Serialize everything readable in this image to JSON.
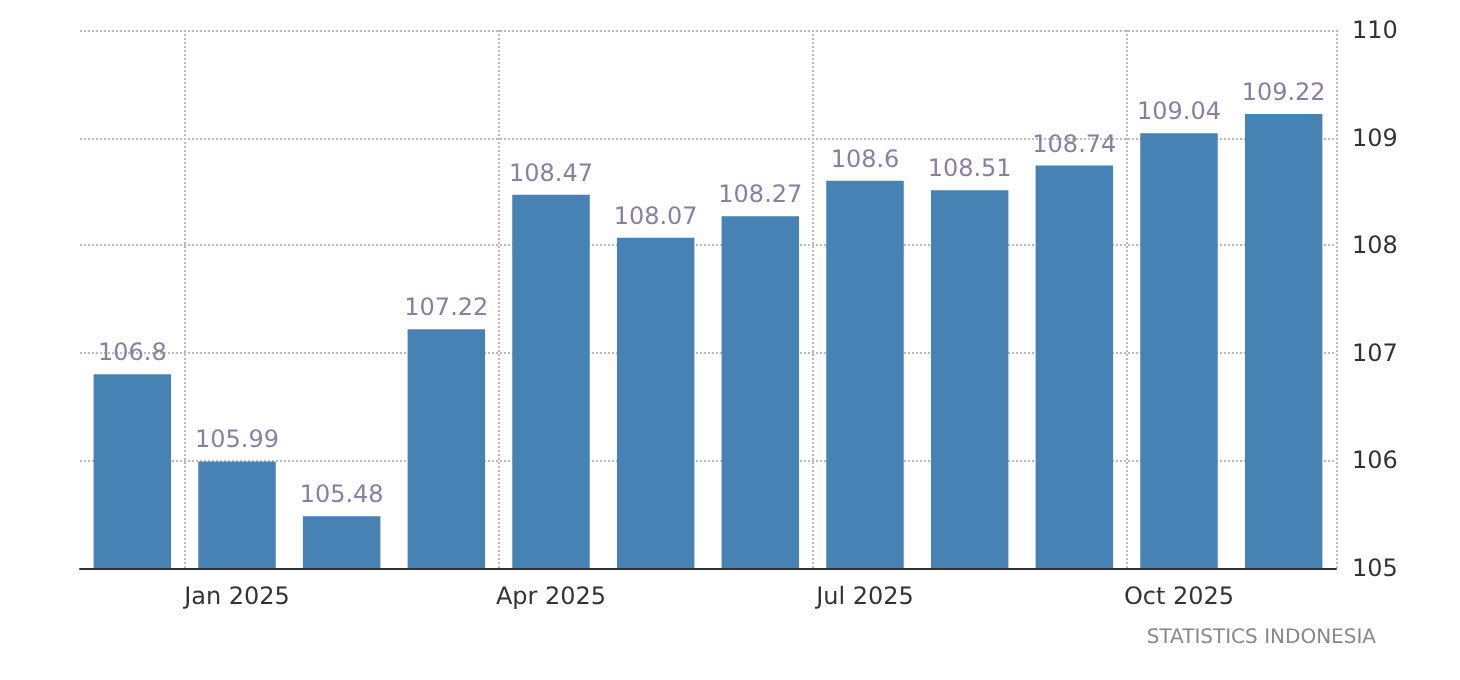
{
  "chart_data": {
    "type": "bar",
    "categories": [
      null,
      "Jan 2025",
      null,
      null,
      "Apr 2025",
      null,
      null,
      "Jul 2025",
      null,
      null,
      "Oct 2025",
      null
    ],
    "values": [
      106.8,
      105.99,
      105.48,
      107.22,
      108.47,
      108.07,
      108.27,
      108.6,
      108.51,
      108.74,
      109.04,
      109.22
    ],
    "color": "#4682b4",
    "ylim": [
      105,
      110
    ],
    "yticks": [
      105,
      106,
      107,
      108,
      109,
      110
    ],
    "grid": true,
    "data_labels": true,
    "annotations": [
      "STATISTICS INDONESIA"
    ]
  }
}
